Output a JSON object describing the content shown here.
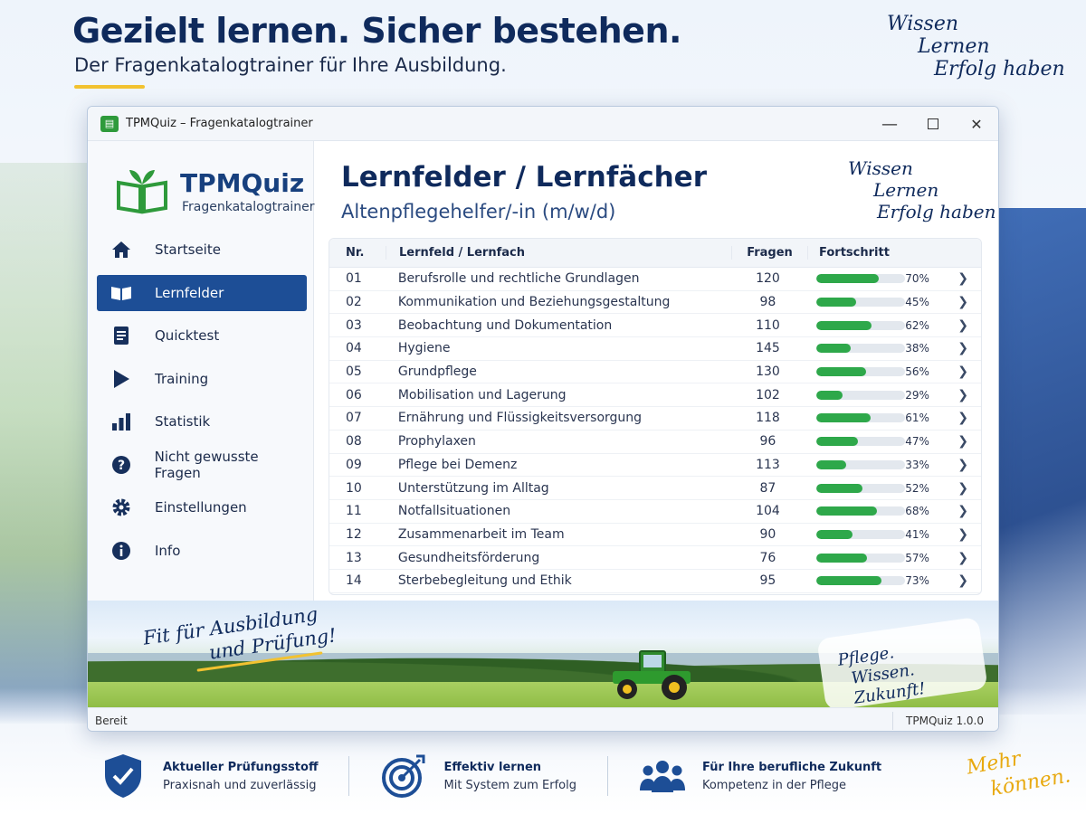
{
  "page": {
    "headline": "Gezielt lernen. Sicher bestehen.",
    "subheadline": "Der Fragenkatalogtrainer für Ihre Ausbildung.",
    "slogan_top": [
      "Wissen",
      "Lernen",
      "Erfolg haben"
    ]
  },
  "window": {
    "title": "TPMQuiz – Fragenkatalogtrainer",
    "controls": {
      "minimize": "—",
      "close": "✕"
    }
  },
  "brand": {
    "name": "TPMQuiz",
    "subtitle": "Fragenkatalogtrainer"
  },
  "sidebar": {
    "items": [
      {
        "label": "Startseite",
        "icon": "home-icon"
      },
      {
        "label": "Lernfelder",
        "icon": "book-icon",
        "active": true
      },
      {
        "label": "Quicktest",
        "icon": "document-icon"
      },
      {
        "label": "Training",
        "icon": "play-icon"
      },
      {
        "label": "Statistik",
        "icon": "bar-chart-icon"
      },
      {
        "label": "Nicht gewusste Fragen",
        "icon": "question-icon"
      },
      {
        "label": "Einstellungen",
        "icon": "gear-icon"
      },
      {
        "label": "Info",
        "icon": "info-icon"
      }
    ]
  },
  "main": {
    "title": "Lernfelder / Lernfächer",
    "subtitle": "Altenpflegehelfer/-in (m/w/d)",
    "slogan": [
      "Wissen",
      "Lernen",
      "Erfolg haben"
    ],
    "table": {
      "headers": {
        "nr": "Nr.",
        "name": "Lernfeld / Lernfach",
        "fragen": "Fragen",
        "progress": "Fortschritt"
      },
      "rows": [
        {
          "nr": "01",
          "name": "Berufsrolle und rechtliche Grundlagen",
          "fragen": "120",
          "progress": 70,
          "pct": "70%"
        },
        {
          "nr": "02",
          "name": "Kommunikation und Beziehungsgestaltung",
          "fragen": "98",
          "progress": 45,
          "pct": "45%"
        },
        {
          "nr": "03",
          "name": "Beobachtung und Dokumentation",
          "fragen": "110",
          "progress": 62,
          "pct": "62%"
        },
        {
          "nr": "04",
          "name": "Hygiene",
          "fragen": "145",
          "progress": 38,
          "pct": "38%"
        },
        {
          "nr": "05",
          "name": "Grundpflege",
          "fragen": "130",
          "progress": 56,
          "pct": "56%"
        },
        {
          "nr": "06",
          "name": "Mobilisation und Lagerung",
          "fragen": "102",
          "progress": 29,
          "pct": "29%"
        },
        {
          "nr": "07",
          "name": "Ernährung und Flüssigkeitsversorgung",
          "fragen": "118",
          "progress": 61,
          "pct": "61%"
        },
        {
          "nr": "08",
          "name": "Prophylaxen",
          "fragen": "96",
          "progress": 47,
          "pct": "47%"
        },
        {
          "nr": "09",
          "name": "Pflege bei Demenz",
          "fragen": "113",
          "progress": 33,
          "pct": "33%"
        },
        {
          "nr": "10",
          "name": "Unterstützung im Alltag",
          "fragen": "87",
          "progress": 52,
          "pct": "52%"
        },
        {
          "nr": "11",
          "name": "Notfallsituationen",
          "fragen": "104",
          "progress": 68,
          "pct": "68%"
        },
        {
          "nr": "12",
          "name": "Zusammenarbeit im Team",
          "fragen": "90",
          "progress": 41,
          "pct": "41%"
        },
        {
          "nr": "13",
          "name": "Gesundheitsförderung",
          "fragen": "76",
          "progress": 57,
          "pct": "57%"
        },
        {
          "nr": "14",
          "name": "Sterbebegleitung und Ethik",
          "fragen": "95",
          "progress": 73,
          "pct": "73%"
        }
      ]
    }
  },
  "banner": {
    "slogan_left": [
      "Fit für Ausbildung",
      "und Prüfung!"
    ],
    "slogan_right": [
      "Pflege.",
      "Wissen. Zukunft!"
    ]
  },
  "statusbar": {
    "status": "Bereit",
    "version": "TPMQuiz 1.0.0"
  },
  "features": [
    {
      "title": "Aktueller Prüfungsstoff",
      "subtitle": "Praxisnah und zuverlässig",
      "icon": "shield-check-icon"
    },
    {
      "title": "Effektiv lernen",
      "subtitle": "Mit System zum Erfolg",
      "icon": "target-icon"
    },
    {
      "title": "Für Ihre berufliche Zukunft",
      "subtitle": "Kompetenz in der Pflege",
      "icon": "people-icon"
    }
  ],
  "slogan_bottom": [
    "Mehr",
    "können."
  ],
  "colors": {
    "primary": "#1d4e96",
    "headline": "#0f2a5c",
    "progress": "#2ea84a",
    "accent_yellow": "#f2c230"
  }
}
